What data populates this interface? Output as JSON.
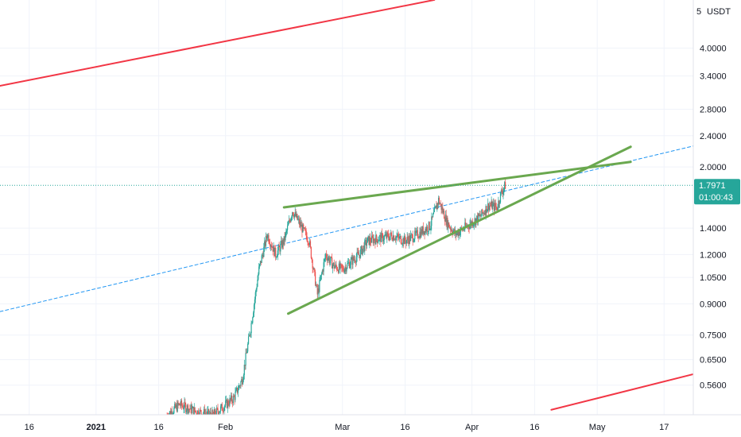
{
  "chart_data": {
    "type": "candlestick",
    "symbol_unit": "USDT",
    "y_scale": "log",
    "ylim": [
      0.48,
      5.2
    ],
    "y_ticks": [
      {
        "value": 0.56,
        "label": "0.5600"
      },
      {
        "value": 0.65,
        "label": "0.6500"
      },
      {
        "value": 0.75,
        "label": "0.7500"
      },
      {
        "value": 0.9,
        "label": "0.9000"
      },
      {
        "value": 1.05,
        "label": "1.0500"
      },
      {
        "value": 1.2,
        "label": "1.2000"
      },
      {
        "value": 1.4,
        "label": "1.4000"
      },
      {
        "value": 2.0,
        "label": "2.0000"
      },
      {
        "value": 2.4,
        "label": "2.4000"
      },
      {
        "value": 2.8,
        "label": "2.8000"
      },
      {
        "value": 3.4,
        "label": "3.4000"
      },
      {
        "value": 4.0,
        "label": "4.0000"
      }
    ],
    "y_top_label": "5",
    "xlim": [
      "2020-12-09",
      "2021-05-24"
    ],
    "x_ticks": [
      {
        "date": "2020-12-16",
        "label": "16",
        "bold": false
      },
      {
        "date": "2021-01-01",
        "label": "2021",
        "bold": true
      },
      {
        "date": "2021-01-16",
        "label": "16",
        "bold": false
      },
      {
        "date": "2021-02-01",
        "label": "Feb",
        "bold": false
      },
      {
        "date": "2021-03-01",
        "label": "Mar",
        "bold": false
      },
      {
        "date": "2021-03-16",
        "label": "16",
        "bold": false
      },
      {
        "date": "2021-04-01",
        "label": "Apr",
        "bold": false
      },
      {
        "date": "2021-04-16",
        "label": "16",
        "bold": false
      },
      {
        "date": "2021-05-01",
        "label": "May",
        "bold": false
      },
      {
        "date": "2021-05-17",
        "label": "17",
        "bold": false
      }
    ],
    "current_price": {
      "value": 1.7971,
      "label": "1.7971",
      "countdown": "01:00:43",
      "color": "#26a69a"
    },
    "colors": {
      "up": "#26a69a",
      "down": "#ef5350",
      "trend_green": "#6aa84f",
      "trend_red": "#f23645",
      "dashed_blue": "#2196f3"
    },
    "trend_lines": [
      {
        "name": "red-upper-channel",
        "color": "#f23645",
        "dashed": false,
        "from": {
          "date": "2020-12-09",
          "price": 3.21
        },
        "to": {
          "date": "2021-03-23",
          "price": 5.3
        }
      },
      {
        "name": "red-lower-channel",
        "color": "#f23645",
        "dashed": false,
        "from": {
          "date": "2021-04-20",
          "price": 0.485
        },
        "to": {
          "date": "2021-05-24",
          "price": 0.597
        }
      },
      {
        "name": "green-upper-wedge",
        "color": "#6aa84f",
        "dashed": false,
        "from": {
          "date": "2021-02-15",
          "price": 1.58
        },
        "to": {
          "date": "2021-05-09",
          "price": 2.06
        }
      },
      {
        "name": "green-lower-wedge",
        "color": "#6aa84f",
        "dashed": false,
        "from": {
          "date": "2021-02-16",
          "price": 0.85
        },
        "to": {
          "date": "2021-05-09",
          "price": 2.25
        }
      },
      {
        "name": "blue-dashed-trend",
        "color": "#2196f3",
        "dashed": true,
        "from": {
          "date": "2020-12-09",
          "price": 0.86
        },
        "to": {
          "date": "2021-05-24",
          "price": 2.26
        }
      }
    ],
    "candles_keypoints": [
      {
        "date": "2021-01-18",
        "price": 0.47
      },
      {
        "date": "2021-01-21",
        "price": 0.5
      },
      {
        "date": "2021-01-25",
        "price": 0.48
      },
      {
        "date": "2021-01-29",
        "price": 0.47
      },
      {
        "date": "2021-02-03",
        "price": 0.52
      },
      {
        "date": "2021-02-05",
        "price": 0.58
      },
      {
        "date": "2021-02-07",
        "price": 0.78
      },
      {
        "date": "2021-02-09",
        "price": 1.1
      },
      {
        "date": "2021-02-11",
        "price": 1.35
      },
      {
        "date": "2021-02-13",
        "price": 1.2
      },
      {
        "date": "2021-02-15",
        "price": 1.3
      },
      {
        "date": "2021-02-17",
        "price": 1.55
      },
      {
        "date": "2021-02-19",
        "price": 1.42
      },
      {
        "date": "2021-02-21",
        "price": 1.3
      },
      {
        "date": "2021-02-23",
        "price": 0.95
      },
      {
        "date": "2021-02-25",
        "price": 1.2
      },
      {
        "date": "2021-02-27",
        "price": 1.12
      },
      {
        "date": "2021-03-01",
        "price": 1.1
      },
      {
        "date": "2021-03-03",
        "price": 1.15
      },
      {
        "date": "2021-03-05",
        "price": 1.2
      },
      {
        "date": "2021-03-07",
        "price": 1.3
      },
      {
        "date": "2021-03-10",
        "price": 1.32
      },
      {
        "date": "2021-03-13",
        "price": 1.34
      },
      {
        "date": "2021-03-16",
        "price": 1.3
      },
      {
        "date": "2021-03-19",
        "price": 1.35
      },
      {
        "date": "2021-03-22",
        "price": 1.42
      },
      {
        "date": "2021-03-24",
        "price": 1.65
      },
      {
        "date": "2021-03-26",
        "price": 1.45
      },
      {
        "date": "2021-03-28",
        "price": 1.35
      },
      {
        "date": "2021-03-31",
        "price": 1.42
      },
      {
        "date": "2021-04-03",
        "price": 1.5
      },
      {
        "date": "2021-04-05",
        "price": 1.6
      },
      {
        "date": "2021-04-07",
        "price": 1.58
      },
      {
        "date": "2021-04-08",
        "price": 1.72
      },
      {
        "date": "2021-04-09",
        "price": 1.7971
      }
    ]
  }
}
